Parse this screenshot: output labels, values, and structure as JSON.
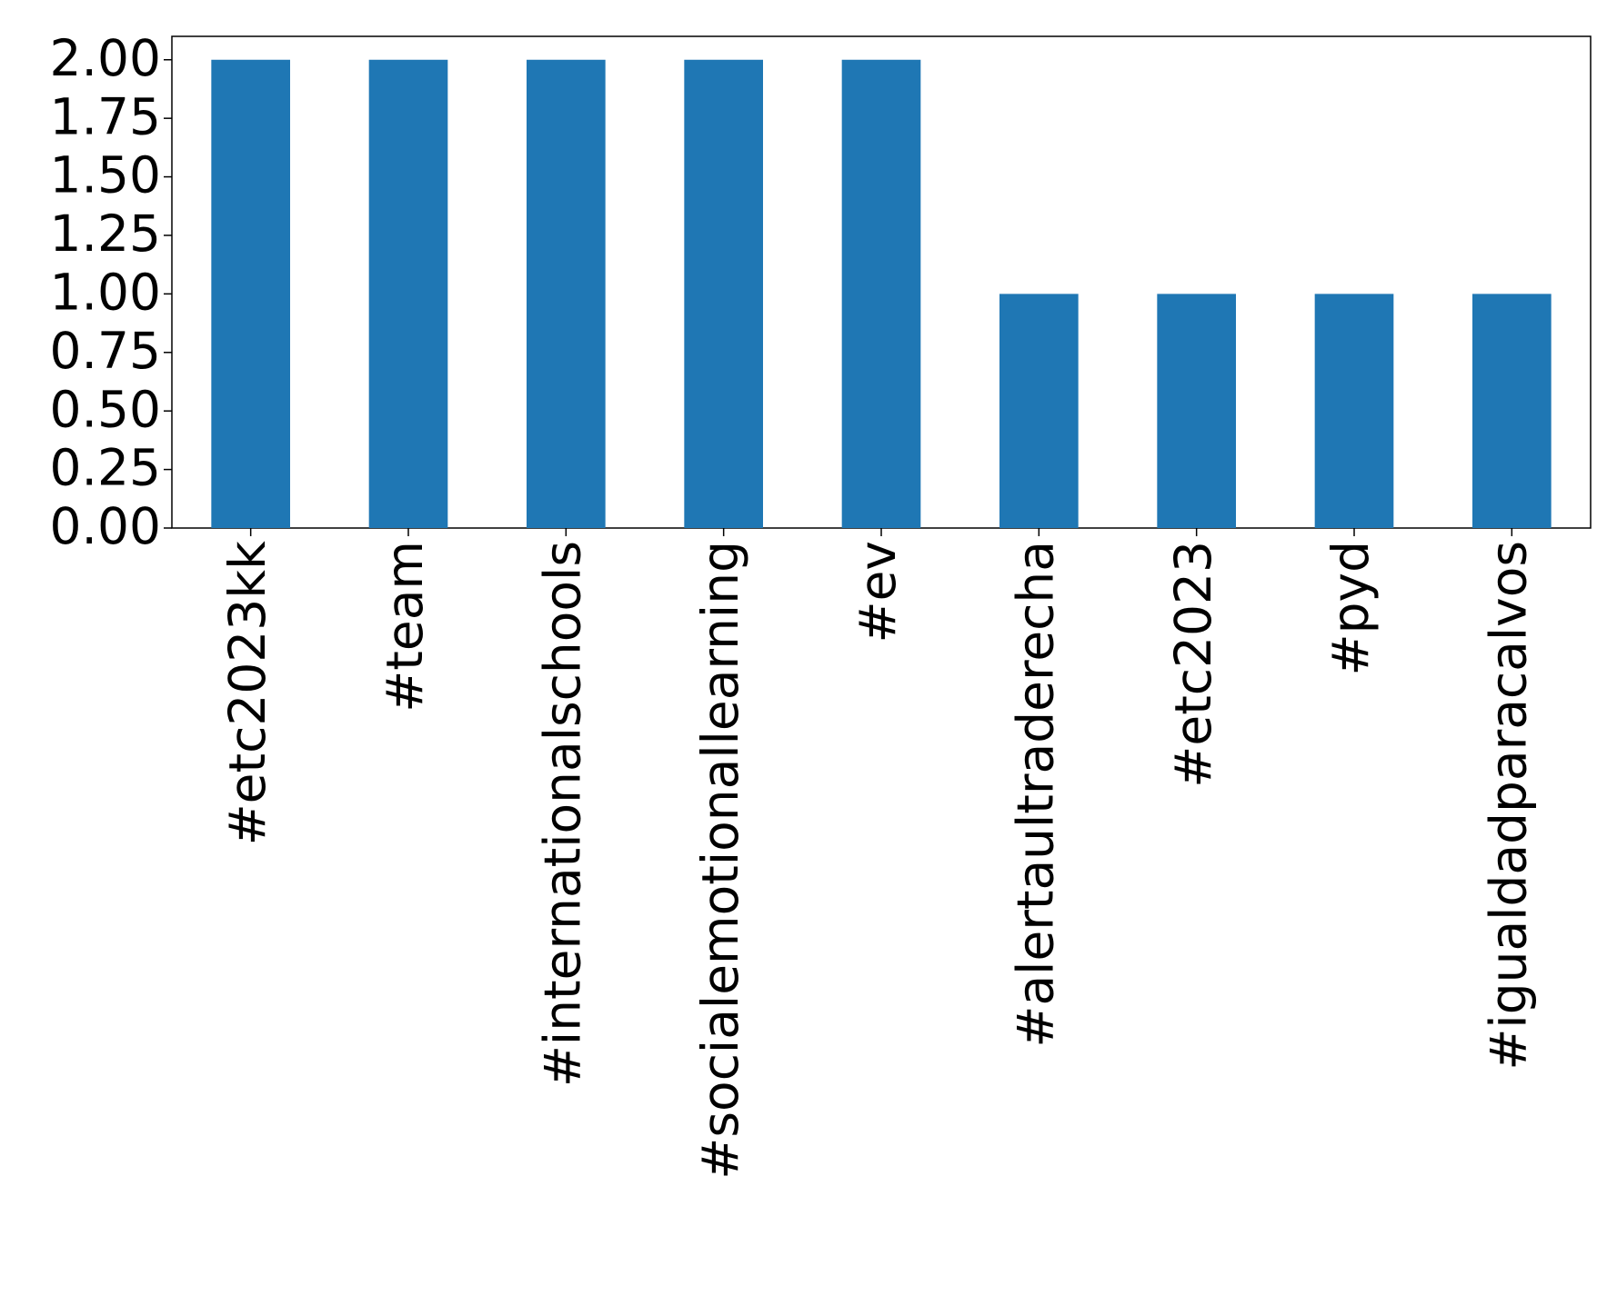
{
  "chart_data": {
    "type": "bar",
    "categories": [
      "#etc2023kk",
      "#team",
      "#internationalschools",
      "#socialemotionallearning",
      "#ev",
      "#alertaultraderecha",
      "#etc2023",
      "#pyd",
      "#igualdadparacalvos"
    ],
    "values": [
      2,
      2,
      2,
      2,
      2,
      1,
      1,
      1,
      1
    ],
    "color": "#1f77b4",
    "ylim": [
      0,
      2.1
    ],
    "yticks": [
      {
        "value": 0,
        "label": "0.00"
      },
      {
        "value": 0.25,
        "label": "0.25"
      },
      {
        "value": 0.5,
        "label": "0.50"
      },
      {
        "value": 0.75,
        "label": "0.75"
      },
      {
        "value": 1,
        "label": "1.00"
      },
      {
        "value": 1.25,
        "label": "1.25"
      },
      {
        "value": 1.5,
        "label": "1.50"
      },
      {
        "value": 1.75,
        "label": "1.75"
      },
      {
        "value": 2,
        "label": "2.00"
      }
    ],
    "grid": false
  }
}
